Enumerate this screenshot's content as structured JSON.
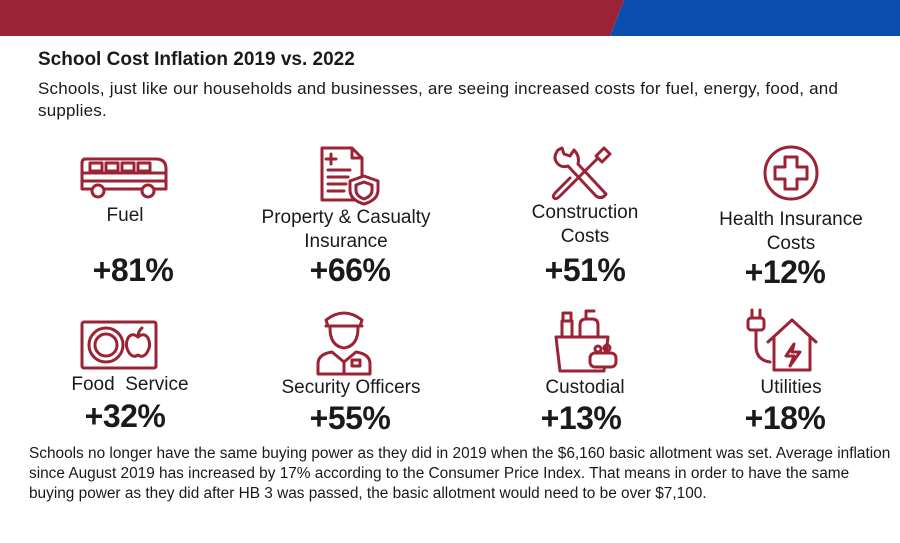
{
  "colors": {
    "accent_red": "#9b2335",
    "accent_blue": "#0a4fb0",
    "icon": "#9b2335"
  },
  "title": "School Cost Inflation 2019 vs. 2022",
  "intro": "Schools, just like our households and businesses, are seeing increased costs for fuel, energy, food, and supplies.",
  "items": [
    {
      "icon": "bus-icon",
      "label": "Fuel",
      "value": "+81%"
    },
    {
      "icon": "document-shield-icon",
      "label": "Property & Casualty Insurance",
      "value": "+66%"
    },
    {
      "icon": "wrench-screwdriver-icon",
      "label": "Construction Costs",
      "value": "+51%"
    },
    {
      "icon": "medical-cross-icon",
      "label": "Health Insurance Costs",
      "value": "+12%"
    },
    {
      "icon": "plate-apple-icon",
      "label": "Food  Service",
      "value": "+32%"
    },
    {
      "icon": "security-officer-icon",
      "label": "Security Officers",
      "value": "+55%"
    },
    {
      "icon": "cleaning-supplies-icon",
      "label": "Custodial",
      "value": "+13%"
    },
    {
      "icon": "house-plug-icon",
      "label": "Utilities",
      "value": "+18%"
    }
  ],
  "footer": "Schools no longer have the same buying power as they did in 2019 when the $6,160 basic allotment was set.  Average inflation since August 2019 has increased by 17% according to the Consumer Price Index. That means in order to have the same buying power as they did after HB 3 was passed, the basic allotment would need to be over $7,100."
}
